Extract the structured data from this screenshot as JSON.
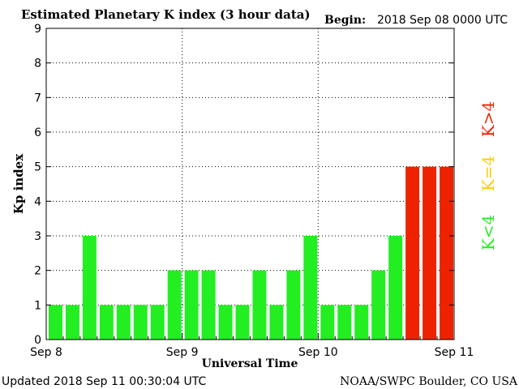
{
  "header": {
    "title": "Estimated Planetary K index (3 hour data)",
    "begin_label": "Begin:",
    "begin_value": "2018 Sep 08 0000 UTC"
  },
  "footer": {
    "updated": "Updated 2018 Sep 11 00:30:04 UTC",
    "source": "NOAA/SWPC Boulder, CO USA"
  },
  "legend": [
    {
      "label": "K<4",
      "color": "#22ee22"
    },
    {
      "label": "K=4",
      "color": "#ffcc00"
    },
    {
      "label": "K>4",
      "color": "#ee2200"
    }
  ],
  "colors": {
    "low": "#22ee22",
    "equal": "#ffcc00",
    "high": "#ee2200",
    "grid": "#000000",
    "axis": "#000000"
  },
  "chart_data": {
    "type": "bar",
    "title": "Estimated Planetary K index (3 hour data)",
    "xlabel": "Universal Time",
    "ylabel": "Kp index",
    "ylim": [
      0,
      9
    ],
    "yticks": [
      "0",
      "1",
      "2",
      "3",
      "4",
      "5",
      "6",
      "7",
      "8",
      "9"
    ],
    "xticks": [
      "Sep 8",
      "Sep 9",
      "Sep 10",
      "Sep 11"
    ],
    "bars_per_day": 8,
    "grid": true,
    "values": [
      1,
      1,
      3,
      1,
      1,
      1,
      1,
      2,
      2,
      2,
      1,
      1,
      2,
      1,
      2,
      3,
      1,
      1,
      1,
      2,
      3,
      5,
      5,
      5
    ]
  }
}
